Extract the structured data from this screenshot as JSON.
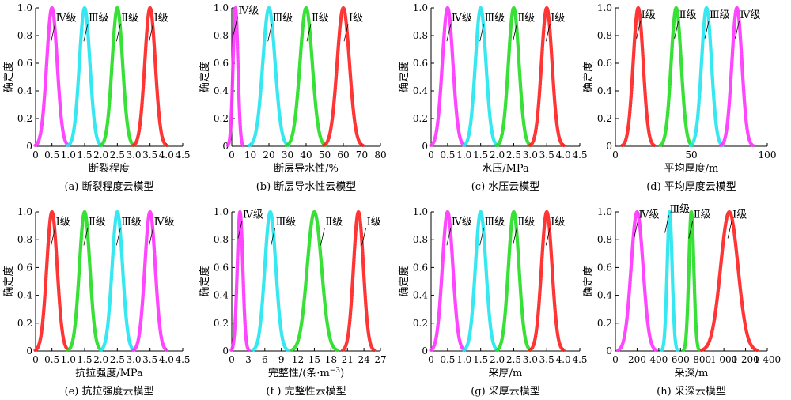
{
  "figure": {
    "y_axis_label": "确定度",
    "y_ticks": [
      "0",
      "0.2",
      "0.4",
      "0.6",
      "0.8",
      "1.0"
    ],
    "colors": {
      "I级": "#ff2020",
      "II级": "#22dd22",
      "III级": "#22e6f0",
      "IV级": "#ff33ff"
    }
  },
  "chart_data": [
    {
      "type": "line",
      "caption": "(a) 断裂程度云模型",
      "xlabel": "断裂程度",
      "xlim": [
        0,
        4.5
      ],
      "x_ticks": [
        "0",
        "0.5",
        "1.0",
        "1.5",
        "2.0",
        "2.5",
        "3.0",
        "3.5",
        "4.0",
        "4.5"
      ],
      "ylim": [
        0,
        1
      ],
      "series": [
        {
          "name": "Ⅳ级",
          "Ex": 0.5,
          "En": 0.16,
          "color": "#ff33ff"
        },
        {
          "name": "Ⅲ级",
          "Ex": 1.5,
          "En": 0.16,
          "color": "#22e6f0"
        },
        {
          "name": "Ⅱ级",
          "Ex": 2.5,
          "En": 0.16,
          "color": "#22dd22"
        },
        {
          "name": "Ⅰ级",
          "Ex": 3.5,
          "En": 0.16,
          "color": "#ff2020"
        }
      ]
    },
    {
      "type": "line",
      "caption": "(b) 断层导水性云模型",
      "xlabel": "断层导水性/%",
      "xlim": [
        0,
        80
      ],
      "x_ticks": [
        "0",
        "10",
        "20",
        "30",
        "40",
        "50",
        "60",
        "70",
        "80"
      ],
      "ylim": [
        0,
        1
      ],
      "series": [
        {
          "name": "Ⅳ级",
          "Ex": 2,
          "En": 1.3,
          "color": "#ff33ff"
        },
        {
          "name": "Ⅲ级",
          "Ex": 20,
          "En": 3.3,
          "color": "#22e6f0"
        },
        {
          "name": "Ⅱ级",
          "Ex": 40,
          "En": 3.3,
          "color": "#22dd22"
        },
        {
          "name": "Ⅰ级",
          "Ex": 60,
          "En": 3.3,
          "color": "#ff2020"
        }
      ]
    },
    {
      "type": "line",
      "caption": "(c) 水压云模型",
      "xlabel": "水压/MPa",
      "xlim": [
        0,
        4.5
      ],
      "x_ticks": [
        "0",
        "0.5",
        "1.0",
        "1.5",
        "2.0",
        "2.5",
        "3.0",
        "3.5",
        "4.0",
        "4.5"
      ],
      "ylim": [
        0,
        1
      ],
      "series": [
        {
          "name": "Ⅳ级",
          "Ex": 0.5,
          "En": 0.16,
          "color": "#ff33ff"
        },
        {
          "name": "Ⅲ级",
          "Ex": 1.5,
          "En": 0.16,
          "color": "#22e6f0"
        },
        {
          "name": "Ⅱ级",
          "Ex": 2.5,
          "En": 0.16,
          "color": "#22dd22"
        },
        {
          "name": "Ⅰ级",
          "Ex": 3.5,
          "En": 0.16,
          "color": "#ff2020"
        }
      ]
    },
    {
      "type": "line",
      "caption": "(d) 平均厚度云模型",
      "xlabel": "平均厚度/m",
      "xlim": [
        0,
        100
      ],
      "x_ticks": [
        "0",
        "50",
        "100"
      ],
      "ylim": [
        0,
        1
      ],
      "series": [
        {
          "name": "Ⅰ级",
          "Ex": 15,
          "En": 3.3,
          "color": "#ff2020"
        },
        {
          "name": "Ⅱ级",
          "Ex": 40,
          "En": 3.3,
          "color": "#22dd22"
        },
        {
          "name": "Ⅲ级",
          "Ex": 60,
          "En": 3.3,
          "color": "#22e6f0"
        },
        {
          "name": "Ⅳ级",
          "Ex": 80,
          "En": 3.3,
          "color": "#ff33ff"
        }
      ]
    },
    {
      "type": "line",
      "caption": "(e) 抗拉强度云模型",
      "xlabel": "抗拉强度/MPa",
      "xlim": [
        0,
        4.5
      ],
      "x_ticks": [
        "0",
        "0.5",
        "1.0",
        "1.5",
        "2.0",
        "2.5",
        "3.0",
        "3.5",
        "4.0",
        "4.5"
      ],
      "ylim": [
        0,
        1
      ],
      "series": [
        {
          "name": "Ⅰ级",
          "Ex": 0.5,
          "En": 0.16,
          "color": "#ff2020"
        },
        {
          "name": "Ⅱ级",
          "Ex": 1.5,
          "En": 0.16,
          "color": "#22dd22"
        },
        {
          "name": "Ⅲ级",
          "Ex": 2.5,
          "En": 0.16,
          "color": "#22e6f0"
        },
        {
          "name": "Ⅳ级",
          "Ex": 3.5,
          "En": 0.16,
          "color": "#ff33ff"
        }
      ]
    },
    {
      "type": "line",
      "caption": "(f ) 完整性云模型",
      "xlabel_prefix": "完整性/(条·m",
      "xlabel_sup": "−3",
      "xlabel_suffix": ")",
      "xlim": [
        0,
        27
      ],
      "x_ticks": [
        "0",
        "3",
        "6",
        "9",
        "12",
        "15",
        "18",
        "21",
        "24",
        "27"
      ],
      "ylim": [
        0,
        1
      ],
      "series": [
        {
          "name": "Ⅳ级",
          "Ex": 1.5,
          "En": 0.5,
          "color": "#ff33ff"
        },
        {
          "name": "Ⅲ级",
          "Ex": 7,
          "En": 1.0,
          "color": "#22e6f0"
        },
        {
          "name": "Ⅱ级",
          "Ex": 15,
          "En": 1.3,
          "color": "#22dd22"
        },
        {
          "name": "Ⅰ级",
          "Ex": 23,
          "En": 0.9,
          "color": "#ff2020"
        }
      ]
    },
    {
      "type": "line",
      "caption": "(g) 采厚云模型",
      "xlabel": "采厚/m",
      "xlim": [
        0,
        4.5
      ],
      "x_ticks": [
        "0",
        "0.5",
        "1.0",
        "1.5",
        "2.0",
        "2.5",
        "3.0",
        "3.5",
        "4.0",
        "4.5"
      ],
      "ylim": [
        0,
        1
      ],
      "series": [
        {
          "name": "Ⅳ级",
          "Ex": 0.5,
          "En": 0.16,
          "color": "#ff33ff"
        },
        {
          "name": "Ⅲ级",
          "Ex": 1.5,
          "En": 0.16,
          "color": "#22e6f0"
        },
        {
          "name": "Ⅱ级",
          "Ex": 2.5,
          "En": 0.16,
          "color": "#22dd22"
        },
        {
          "name": "Ⅰ级",
          "Ex": 3.5,
          "En": 0.16,
          "color": "#ff2020"
        }
      ]
    },
    {
      "type": "line",
      "caption": "(h) 采深云模型",
      "xlabel": "采深/m",
      "xlim": [
        0,
        1400
      ],
      "x_ticks": [
        "0",
        "200",
        "400",
        "600",
        "800",
        "1 000",
        "1 200",
        "1 400"
      ],
      "ylim": [
        0,
        1
      ],
      "series": [
        {
          "name": "Ⅳ级",
          "Ex": 200,
          "En": 55,
          "color": "#ff33ff"
        },
        {
          "name": "Ⅲ级",
          "Ex": 500,
          "En": 23,
          "color": "#22e6f0"
        },
        {
          "name": "Ⅱ级",
          "Ex": 700,
          "En": 23,
          "color": "#22dd22"
        },
        {
          "name": "Ⅰ级",
          "Ex": 1050,
          "En": 80,
          "color": "#ff2020"
        }
      ]
    }
  ]
}
